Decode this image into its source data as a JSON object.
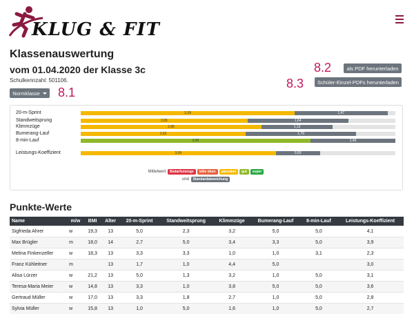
{
  "header": {
    "logo_text": "KLUG & FIT"
  },
  "page": {
    "title": "Klassenauswertung",
    "subtitle": "vom 01.04.2020 der Klasse 3c",
    "school_number": "Schulkennzahl: 501106."
  },
  "buttons": {
    "norm": "Normklasse",
    "pdf": "als PDF herunterladen",
    "pdfs": "Schüler-Einzel-PDFs herunterladen"
  },
  "annotations": {
    "a81": "8.1",
    "a82": "8.2",
    "a83": "8.3"
  },
  "overview": {
    "rows": [
      {
        "label": "20-m-Sprint",
        "left": "3,39",
        "right": "1,47",
        "left_frac": 0.68,
        "right_frac": 0.295,
        "color": "yellow"
      },
      {
        "label": "Standweitsprung",
        "left": "2,65",
        "right": "1,64",
        "left_frac": 0.53,
        "right_frac": 0.32,
        "color": "yellow"
      },
      {
        "label": "Klimmzüge",
        "left": "2,86",
        "right": "1,13",
        "left_frac": 0.575,
        "right_frac": 0.225,
        "color": "yellow"
      },
      {
        "label": "Bumerang-Lauf",
        "left": "2,62",
        "right": "1,76",
        "left_frac": 0.525,
        "right_frac": 0.35,
        "color": "yellow"
      },
      {
        "label": "8-min-Lauf",
        "left": "3,90",
        "right": "1,49",
        "left_frac": 0.73,
        "right_frac": 0.27,
        "color": "green"
      },
      {
        "label": "Leistungs-Koeffizient",
        "left": "3,09",
        "right": "0,69",
        "left_frac": 0.62,
        "right_frac": 0.14,
        "color": "yellow"
      }
    ],
    "legend": {
      "prefix": "Mittelwert",
      "badges": [
        {
          "text": "Bedarfsmenge",
          "color": "#dc3545"
        },
        {
          "text": "bitte üben",
          "color": "#e8603c"
        },
        {
          "text": "passabel",
          "color": "#f5b800"
        },
        {
          "text": "gut",
          "color": "#8fb82a"
        },
        {
          "text": "super",
          "color": "#28a745"
        }
      ],
      "and": "und",
      "std": {
        "text": "Standardabweichung",
        "color": "#6c757d"
      }
    }
  },
  "scores": {
    "title": "Punkte-Werte",
    "columns": [
      "Name",
      "m/w",
      "BMI",
      "Alter",
      "20-m-Sprint",
      "Standweitsprung",
      "Klimmzüge",
      "Bumerang-Lauf",
      "8-min-Lauf",
      "Leistungs-Koeffizient"
    ],
    "rows": [
      [
        "Sigfrieda Ahrer",
        "w",
        "19,3",
        "13",
        "5,0",
        "2,3",
        "3,2",
        "5,0",
        "5,0",
        "4,1"
      ],
      [
        "Max Brügler",
        "m",
        "18,0",
        "14",
        "2,7",
        "5,0",
        "3,4",
        "3,3",
        "5,0",
        "3,9"
      ],
      [
        "Melina Finkenzeller",
        "w",
        "18,3",
        "13",
        "3,3",
        "3,3",
        "1,0",
        "1,0",
        "3,1",
        "2,3"
      ],
      [
        "Franz Kühleitner",
        "m",
        "",
        "13",
        "1,7",
        "1,0",
        "4,4",
        "5,0",
        "",
        "3,0"
      ],
      [
        "Alisa Lürzer",
        "w",
        "21,2",
        "13",
        "5,0",
        "1,3",
        "3,2",
        "1,0",
        "5,0",
        "3,1"
      ],
      [
        "Teresa-Maria Meier",
        "w",
        "14,8",
        "13",
        "3,3",
        "1,0",
        "3,8",
        "5,0",
        "5,0",
        "3,6"
      ],
      [
        "Gertraud Müller",
        "w",
        "17,0",
        "13",
        "3,3",
        "1,8",
        "2,7",
        "1,0",
        "5,0",
        "2,8"
      ],
      [
        "Sylvia Müller",
        "w",
        "15,8",
        "13",
        "1,0",
        "5,0",
        "1,6",
        "1,0",
        "5,0",
        "2,7"
      ]
    ]
  }
}
